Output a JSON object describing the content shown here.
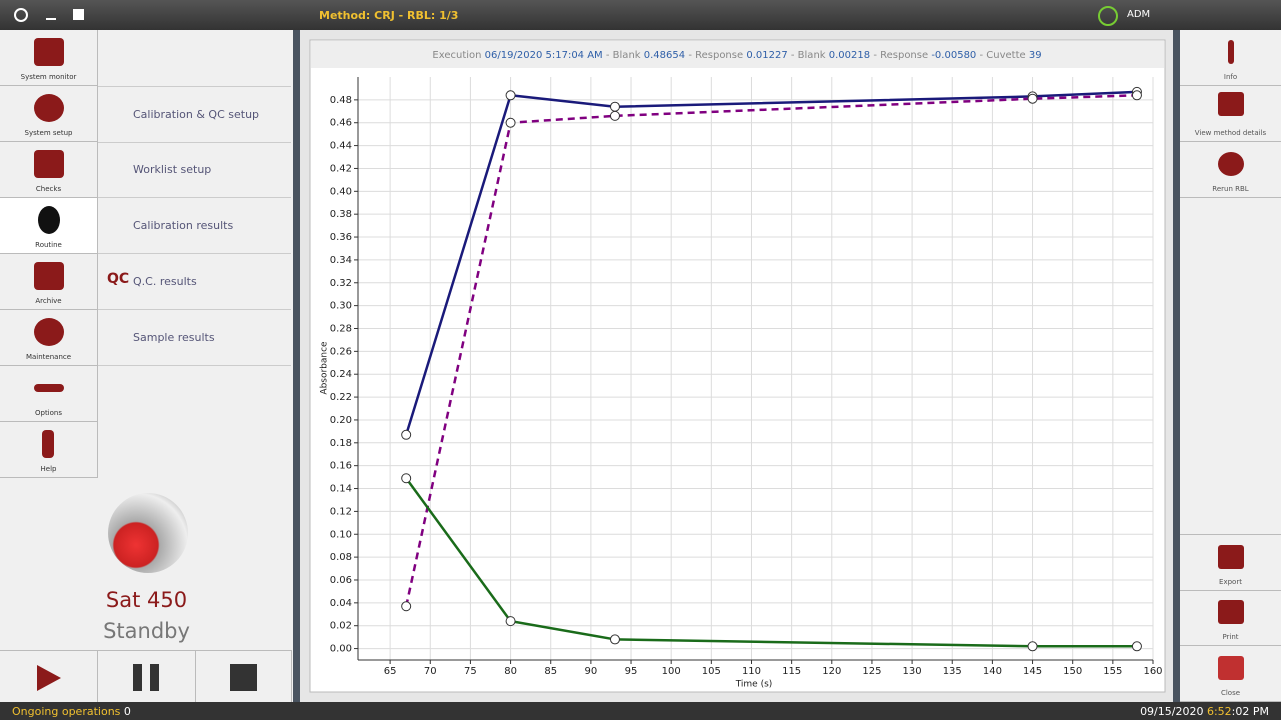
{
  "topbar": {
    "method": "Method: CRJ - RBL: 1/3",
    "user": "ADM"
  },
  "nav": [
    "System monitor",
    "System setup",
    "Checks",
    "Routine",
    "Archive",
    "Maintenance",
    "Options",
    "Help"
  ],
  "submenu": [
    {
      "icon": "",
      "label": "Calibration & QC setup"
    },
    {
      "icon": "",
      "label": "Worklist setup"
    },
    {
      "icon": "",
      "label": "Calibration results"
    },
    {
      "icon": "QC",
      "label": "Q.C. results"
    },
    {
      "icon": "",
      "label": "Sample results"
    }
  ],
  "instrument": {
    "name": "Sat 450",
    "status": "Standby"
  },
  "right_panel": [
    "Info",
    "View method details",
    "Rerun RBL",
    "Export",
    "Print",
    "Close"
  ],
  "statusbar": {
    "ongoing_label": "Ongoing operations",
    "ongoing_count": "0",
    "date": "09/15/2020",
    "time_main": "6:52",
    "time_rest": ":02 PM"
  },
  "execution_header": {
    "separator": "-",
    "parts": [
      {
        "label": "Execution",
        "value": "06/19/2020 5:17:04 AM"
      },
      {
        "label": "Blank",
        "value": "0.48654"
      },
      {
        "label": "Response",
        "value": "0.01227"
      },
      {
        "label": "Blank",
        "value": "0.00218"
      },
      {
        "label": "Response",
        "value": "-0.00580"
      },
      {
        "label": "Cuvette",
        "value": "39"
      }
    ]
  },
  "chart_data": {
    "type": "line",
    "x_label": "Time (s)",
    "y_label": "Absorbance",
    "x": [
      67,
      80,
      93,
      145,
      158
    ],
    "series": [
      {
        "color": "#1a1a7a",
        "dashed": false,
        "values": [
          0.187,
          0.484,
          0.474,
          0.483,
          0.487
        ]
      },
      {
        "color": "#800080",
        "dashed": true,
        "values": [
          0.037,
          0.46,
          0.466,
          0.481,
          0.484
        ]
      },
      {
        "color": "#1a6b1a",
        "dashed": false,
        "values": [
          0.149,
          0.024,
          0.008,
          0.002,
          0.002
        ]
      }
    ],
    "xlim": [
      61,
      160
    ],
    "ylim": [
      -0.01,
      0.5
    ],
    "xticks": [
      65,
      70,
      75,
      80,
      85,
      90,
      95,
      100,
      105,
      110,
      115,
      120,
      125,
      130,
      135,
      140,
      145,
      150,
      155,
      160
    ],
    "yticks": [
      {
        "value": 0,
        "label": "0.00"
      },
      {
        "value": 0.02,
        "label": "0.02"
      },
      {
        "value": 0.04,
        "label": "0.04"
      },
      {
        "value": 0.06,
        "label": "0.06"
      },
      {
        "value": 0.08,
        "label": "0.08"
      },
      {
        "value": 0.1,
        "label": "0.10"
      },
      {
        "value": 0.12,
        "label": "0.12"
      },
      {
        "value": 0.14,
        "label": "0.14"
      },
      {
        "value": 0.16,
        "label": "0.16"
      },
      {
        "value": 0.18,
        "label": "0.18"
      },
      {
        "value": 0.2,
        "label": "0.20"
      },
      {
        "value": 0.22,
        "label": "0.22"
      },
      {
        "value": 0.24,
        "label": "0.24"
      },
      {
        "value": 0.26,
        "label": "0.26"
      },
      {
        "value": 0.28,
        "label": "0.28"
      },
      {
        "value": 0.3,
        "label": "0.30"
      },
      {
        "value": 0.32,
        "label": "0.32"
      },
      {
        "value": 0.34,
        "label": "0.34"
      },
      {
        "value": 0.36,
        "label": "0.36"
      },
      {
        "value": 0.38,
        "label": "0.38"
      },
      {
        "value": 0.4,
        "label": "0.40"
      },
      {
        "value": 0.42,
        "label": "0.42"
      },
      {
        "value": 0.44,
        "label": "0.44"
      },
      {
        "value": 0.46,
        "label": "0.46"
      },
      {
        "value": 0.48,
        "label": "0.48"
      }
    ],
    "grid": true,
    "marker_fill": "#ffffff"
  }
}
